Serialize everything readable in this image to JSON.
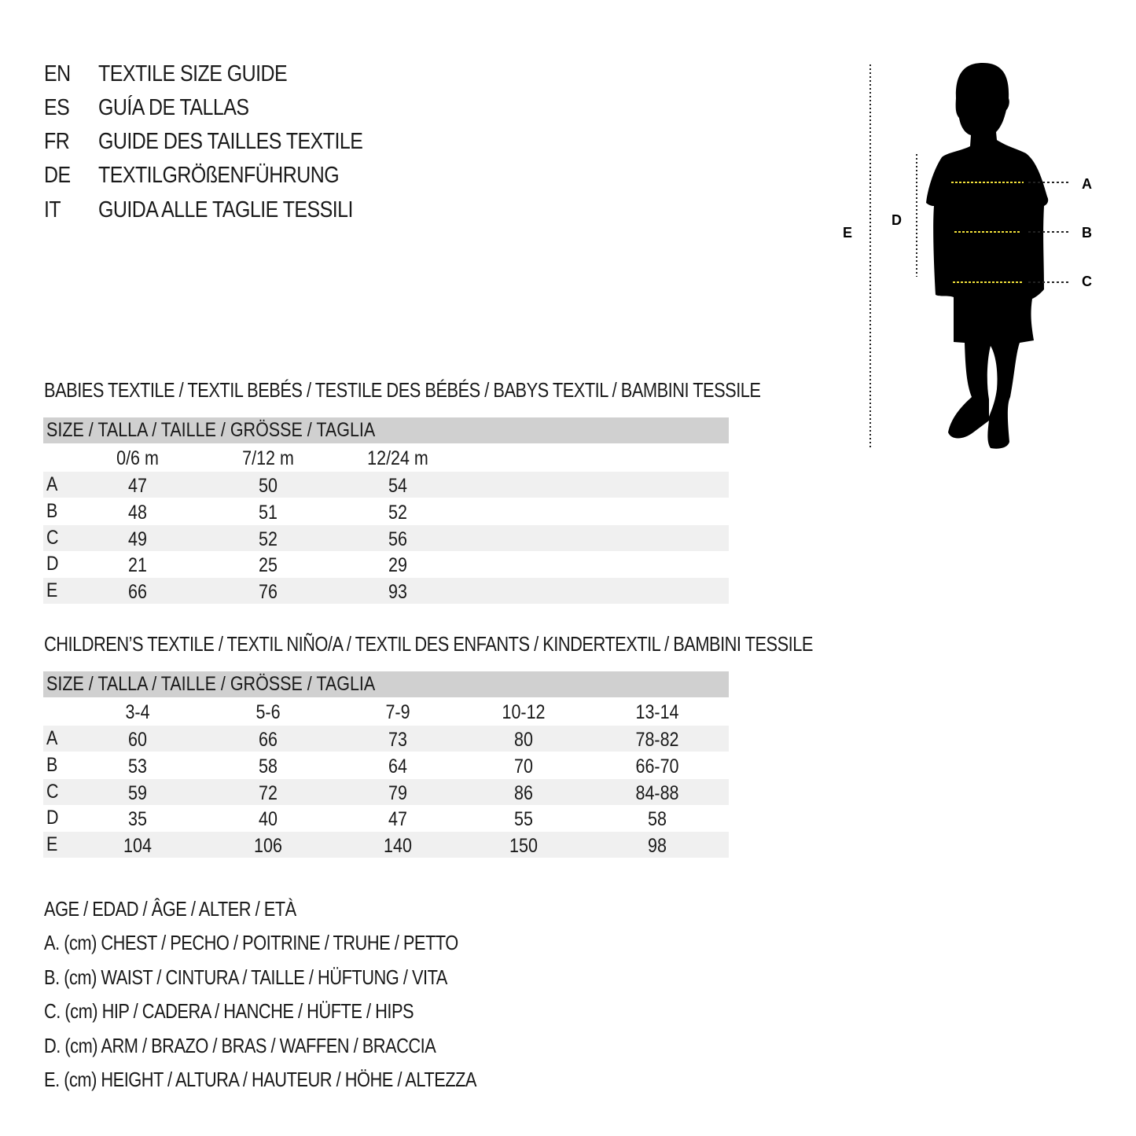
{
  "titles": [
    {
      "lang": "EN",
      "text": "TEXTILE SIZE GUIDE"
    },
    {
      "lang": "ES",
      "text": "GUÍA DE TALLAS"
    },
    {
      "lang": "FR",
      "text": "GUIDE DES TAILLES TEXTILE"
    },
    {
      "lang": "DE",
      "text": "TEXTILGRÖßENFÜHRUNG"
    },
    {
      "lang": "IT",
      "text": "GUIDA ALLE TAGLIE TESSILI"
    }
  ],
  "figure": {
    "labels": {
      "A": "A",
      "B": "B",
      "C": "C",
      "D": "D",
      "E": "E"
    },
    "guide_color": "#f2e13a"
  },
  "babies": {
    "title": "BABIES TEXTILE / TEXTIL BEBÉS / TESTILE DES BÉBÉS / BABYS TEXTIL / BAMBINI TESSILE",
    "header": "SIZE / TALLA / TAILLE / GRÖSSE / TAGLIA",
    "columns": [
      "0/6 m",
      "7/12 m",
      "12/24 m"
    ],
    "rows": [
      {
        "label": "A",
        "values": [
          "47",
          "50",
          "54"
        ]
      },
      {
        "label": "B",
        "values": [
          "48",
          "51",
          "52"
        ]
      },
      {
        "label": "C",
        "values": [
          "49",
          "52",
          "56"
        ]
      },
      {
        "label": "D",
        "values": [
          "21",
          "25",
          "29"
        ]
      },
      {
        "label": "E",
        "values": [
          "66",
          "76",
          "93"
        ]
      }
    ]
  },
  "children": {
    "title": "CHILDREN’S TEXTILE / TEXTIL NIÑO/A / TEXTIL DES ENFANTS / KINDERTEXTIL / BAMBINI TESSILE",
    "header": "SIZE / TALLA / TAILLE / GRÖSSE / TAGLIA",
    "columns": [
      "3-4",
      "5-6",
      "7-9",
      "10-12",
      "13-14"
    ],
    "rows": [
      {
        "label": "A",
        "values": [
          "60",
          "66",
          "73",
          "80",
          "78-82"
        ]
      },
      {
        "label": "B",
        "values": [
          "53",
          "58",
          "64",
          "70",
          "66-70"
        ]
      },
      {
        "label": "C",
        "values": [
          "59",
          "72",
          "79",
          "86",
          "84-88"
        ]
      },
      {
        "label": "D",
        "values": [
          "35",
          "40",
          "47",
          "55",
          "58"
        ]
      },
      {
        "label": "E",
        "values": [
          "104",
          "106",
          "140",
          "150",
          "98"
        ]
      }
    ]
  },
  "legend": [
    "AGE / EDAD / ÂGE / ALTER / ETÀ",
    "A. (cm) CHEST / PECHO / POITRINE / TRUHE / PETTO",
    "B. (cm) WAIST / CINTURA / TAILLE / HÜFTUNG / VITA",
    "C. (cm) HIP / CADERA / HANCHE / HÜFTE / HIPS",
    "D. (cm) ARM / BRAZO / BRAS / WAFFEN / BRACCIA",
    "E. (cm) HEIGHT / ALTURA / HAUTEUR / HÖHE / ALTEZZA"
  ]
}
